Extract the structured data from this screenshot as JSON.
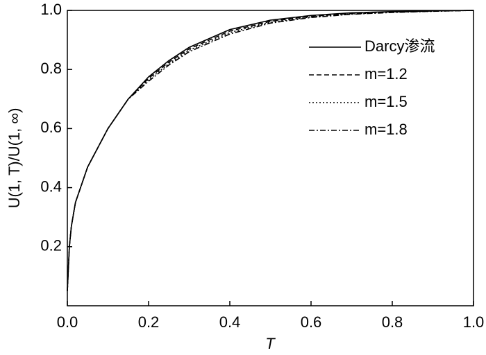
{
  "chart_data": {
    "type": "line",
    "x_label": "T",
    "y_label": "U(1, T)/U(1, ∞)",
    "x": [
      0,
      0.005,
      0.01,
      0.02,
      0.05,
      0.1,
      0.15,
      0.2,
      0.25,
      0.3,
      0.4,
      0.5,
      0.6,
      0.7,
      0.8,
      0.9,
      1.0
    ],
    "series": [
      {
        "name": "Darcy渗流",
        "color": "#000000",
        "style": "solid",
        "values": [
          0.05,
          0.2,
          0.27,
          0.35,
          0.47,
          0.6,
          0.7,
          0.775,
          0.83,
          0.875,
          0.935,
          0.967,
          0.983,
          0.992,
          0.996,
          0.998,
          1.0
        ]
      },
      {
        "name": "m=1.2",
        "color": "#000000",
        "style": "dashed",
        "values": [
          0.05,
          0.2,
          0.27,
          0.35,
          0.47,
          0.6,
          0.7,
          0.77,
          0.825,
          0.87,
          0.93,
          0.963,
          0.98,
          0.99,
          0.995,
          0.998,
          1.0
        ]
      },
      {
        "name": "m=1.5",
        "color": "#000000",
        "style": "dotted",
        "values": [
          0.05,
          0.2,
          0.27,
          0.35,
          0.47,
          0.6,
          0.7,
          0.765,
          0.82,
          0.865,
          0.925,
          0.96,
          0.978,
          0.988,
          0.994,
          0.997,
          1.0
        ]
      },
      {
        "name": "m=1.8",
        "color": "#000000",
        "style": "dashdot",
        "values": [
          0.05,
          0.2,
          0.27,
          0.35,
          0.47,
          0.6,
          0.7,
          0.76,
          0.815,
          0.86,
          0.92,
          0.957,
          0.976,
          0.987,
          0.993,
          0.997,
          1.0
        ]
      }
    ],
    "xlim": [
      0,
      1.0
    ],
    "ylim": [
      0,
      1.0
    ],
    "xticks": [
      {
        "value": 0,
        "label": "0.0"
      },
      0.2,
      0.4,
      0.6,
      0.8,
      {
        "value": 1.0,
        "label": "1.0"
      }
    ],
    "yticks": [
      0.2,
      0.4,
      0.6,
      0.8,
      {
        "value": 1.0,
        "label": "1.0"
      }
    ],
    "legend": "upper right"
  }
}
